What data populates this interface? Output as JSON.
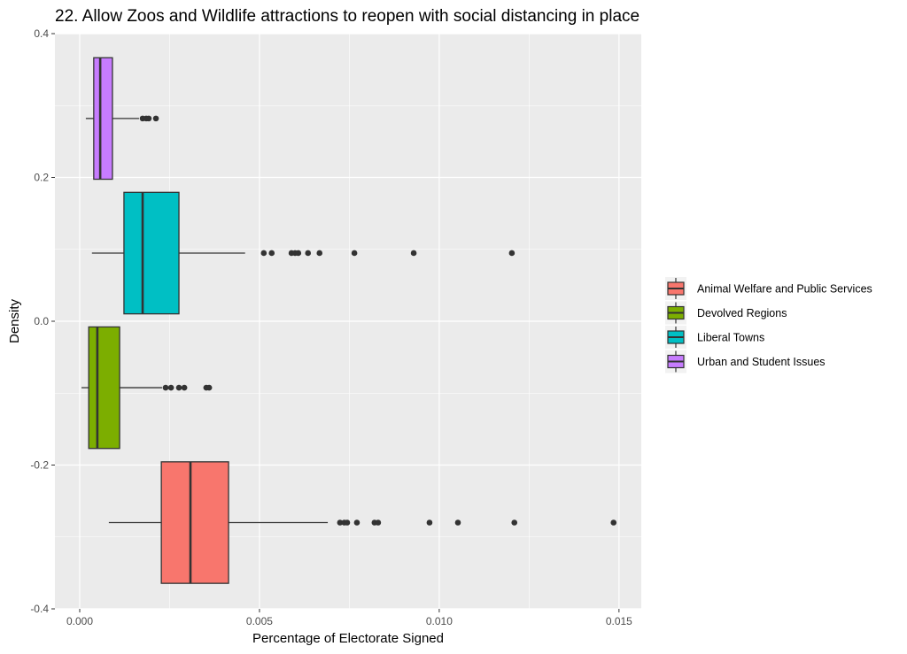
{
  "chart_data": {
    "type": "boxplot",
    "title": "22. Allow Zoos and Wildlife attractions to reopen with social distancing in place",
    "xlabel": "Percentage of Electorate Signed",
    "ylabel": "Density",
    "xlim": [
      -0.00069,
      0.01562
    ],
    "ylim": [
      -0.4,
      0.4
    ],
    "xticks": [
      {
        "v": 0,
        "label": "0.000"
      },
      {
        "v": 0.005,
        "label": "0.005"
      },
      {
        "v": 0.01,
        "label": "0.010"
      },
      {
        "v": 0.015,
        "label": "0.015"
      }
    ],
    "yticks": [
      {
        "v": 0.4,
        "label": "0.4"
      },
      {
        "v": 0.2,
        "label": "0.2"
      },
      {
        "v": 0,
        "label": "0.0"
      },
      {
        "v": -0.2,
        "label": "-0.2"
      },
      {
        "v": -0.4,
        "label": "-0.4"
      }
    ],
    "grid": true,
    "legend_position": "right",
    "box_height": 0.169,
    "series": [
      {
        "name": "Animal Welfare and Public Services",
        "color": "#F8766D",
        "y": -0.28,
        "whisker_low": 0.00081,
        "q1": 0.00227,
        "median": 0.00308,
        "q3": 0.00414,
        "whisker_high": 0.0069,
        "outliers": [
          0.00724,
          0.00736,
          0.00744,
          0.00771,
          0.0082,
          0.0083,
          0.00973,
          0.01052,
          0.01209,
          0.01485
        ]
      },
      {
        "name": "Devolved Regions",
        "color": "#7CAE00",
        "y": -0.0924,
        "whisker_low": 5e-05,
        "q1": 0.00025,
        "median": 0.00049,
        "q3": 0.00111,
        "whisker_high": 0.00229,
        "outliers": [
          0.00239,
          0.00254,
          0.00276,
          0.00291,
          0.00352,
          0.0036
        ]
      },
      {
        "name": "Liberal Towns",
        "color": "#00BFC4",
        "y": 0.0948,
        "whisker_low": 0.00034,
        "q1": 0.00123,
        "median": 0.00175,
        "q3": 0.00276,
        "whisker_high": 0.0046,
        "outliers": [
          0.00512,
          0.00534,
          0.00589,
          0.00599,
          0.00608,
          0.00635,
          0.00667,
          0.00764,
          0.00929,
          0.01202
        ]
      },
      {
        "name": "Urban and Student Issues",
        "color": "#C77CFF",
        "y": 0.282,
        "whisker_low": 0.00017,
        "q1": 0.00039,
        "median": 0.00057,
        "q3": 0.00091,
        "whisker_high": 0.00165,
        "outliers": [
          0.00175,
          0.00185,
          0.00192,
          0.00212
        ]
      }
    ]
  }
}
